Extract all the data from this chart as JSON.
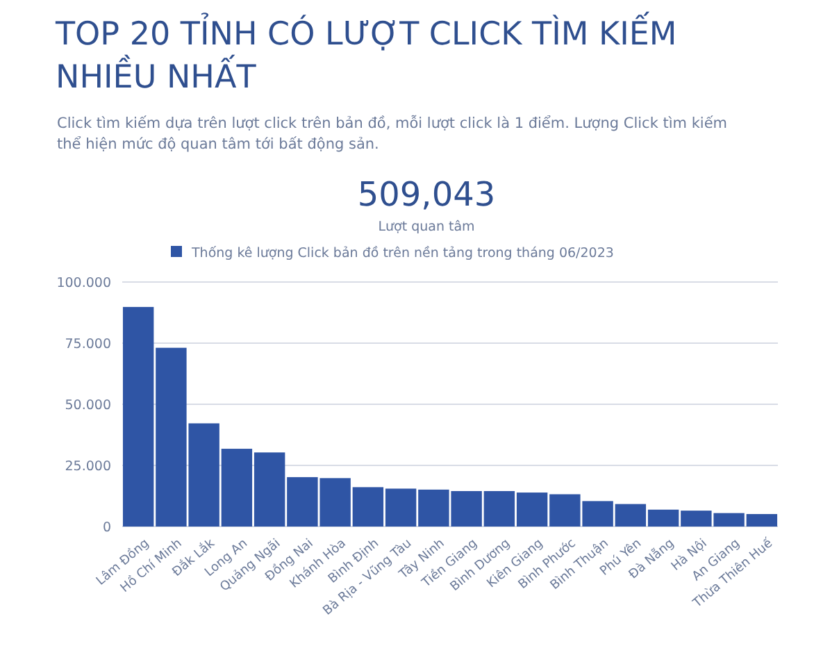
{
  "chart_data": {
    "type": "bar",
    "title": "TOP 20 TỈNH CÓ LƯỢT CLICK TÌM KIẾM NHIỀU NHẤT",
    "subtitle": "Click tìm kiếm dựa trên lượt click trên bản đồ, mỗi lượt click là 1 điểm. Lượng Click tìm kiếm thể hiện mức độ quan tâm tới bất động sản.",
    "annotations": [
      "509,043",
      "Lượt quan tâm"
    ],
    "categories": [
      "Lâm Đồng",
      "Hồ Chí Minh",
      "Đắk Lắk",
      "Long An",
      "Quảng Ngãi",
      "Đồng Nai",
      "Khánh Hòa",
      "Bình Định",
      "Bà Rịa - Vũng Tàu",
      "Tây Ninh",
      "Tiền Giang",
      "Bình Dương",
      "Kiên Giang",
      "Bình Phước",
      "Bình Thuận",
      "Phú Yên",
      "Đà Nẵng",
      "Hà Nội",
      "An Giang",
      "Thừa Thiên Huế"
    ],
    "series": [
      {
        "name": "Thống kê lượng Click bản đồ trên nền tảng trong tháng 06/2023",
        "color": "#2f55a5",
        "values": [
          89800,
          73100,
          42200,
          31800,
          30300,
          20200,
          19800,
          16100,
          15500,
          15100,
          14500,
          14500,
          13900,
          13200,
          10400,
          9200,
          6900,
          6500,
          5500,
          5100
        ]
      }
    ],
    "ylim": [
      0,
      100000
    ],
    "yticks": [
      {
        "value": 0,
        "label": "0"
      },
      {
        "value": 25000,
        "label": "25.000"
      },
      {
        "value": 50000,
        "label": "50.000"
      },
      {
        "value": 75000,
        "label": "75.000"
      },
      {
        "value": 100000,
        "label": "100.000"
      }
    ],
    "grid": "y",
    "legend": "top"
  }
}
